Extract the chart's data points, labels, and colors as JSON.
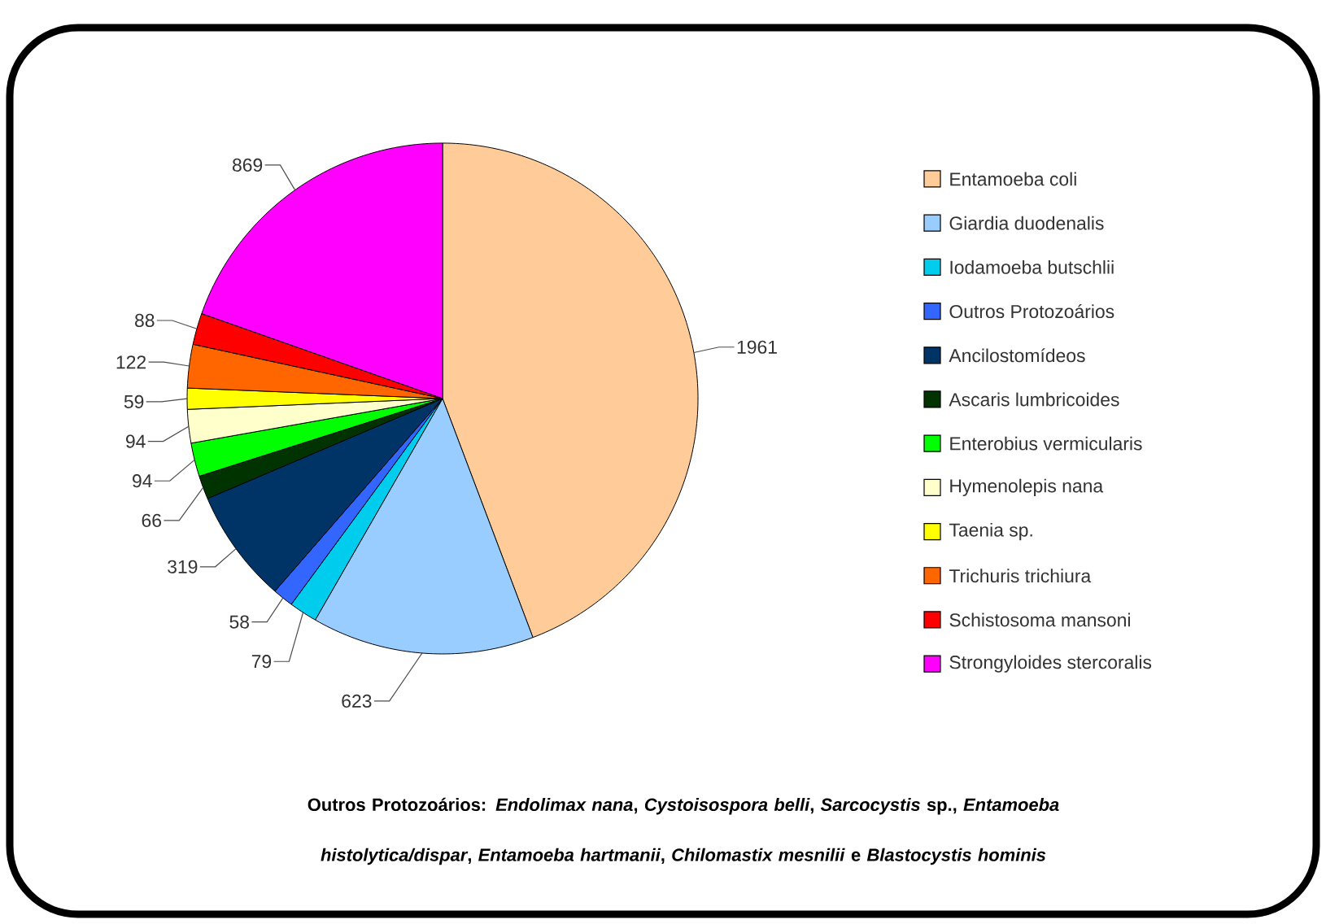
{
  "chart_data": {
    "type": "pie",
    "categories": [
      "Entamoeba coli",
      "Giardia duodenalis",
      "Iodamoeba butschlii",
      "Outros Protozoários",
      "Ancilostomídeos",
      "Ascaris lumbricoides",
      "Enterobius vermicularis",
      "Hymenolepis nana",
      "Taenia sp.",
      "Trichuris trichiura",
      "Schistosoma mansoni",
      "Strongyloides stercoralis"
    ],
    "values": [
      1961,
      623,
      79,
      58,
      319,
      66,
      94,
      94,
      59,
      122,
      88,
      869
    ],
    "colors": [
      "#ffcc99",
      "#99ccff",
      "#00ccee",
      "#3366ff",
      "#003366",
      "#003300",
      "#00ff00",
      "#ffffcc",
      "#ffff00",
      "#ff6600",
      "#ff0000",
      "#ff00ff"
    ],
    "data_labels": true,
    "legend": "right",
    "annotations": [
      "Outros Protozoários: *Endolimax nana*, *Cystoisospora belli*, *Sarcocystis* sp., *Entamoeba histolytica/dispar*, *Entamoeba hartmanii*, *Chilomastix mesnilii* e *Blastocystis hominis*"
    ]
  }
}
